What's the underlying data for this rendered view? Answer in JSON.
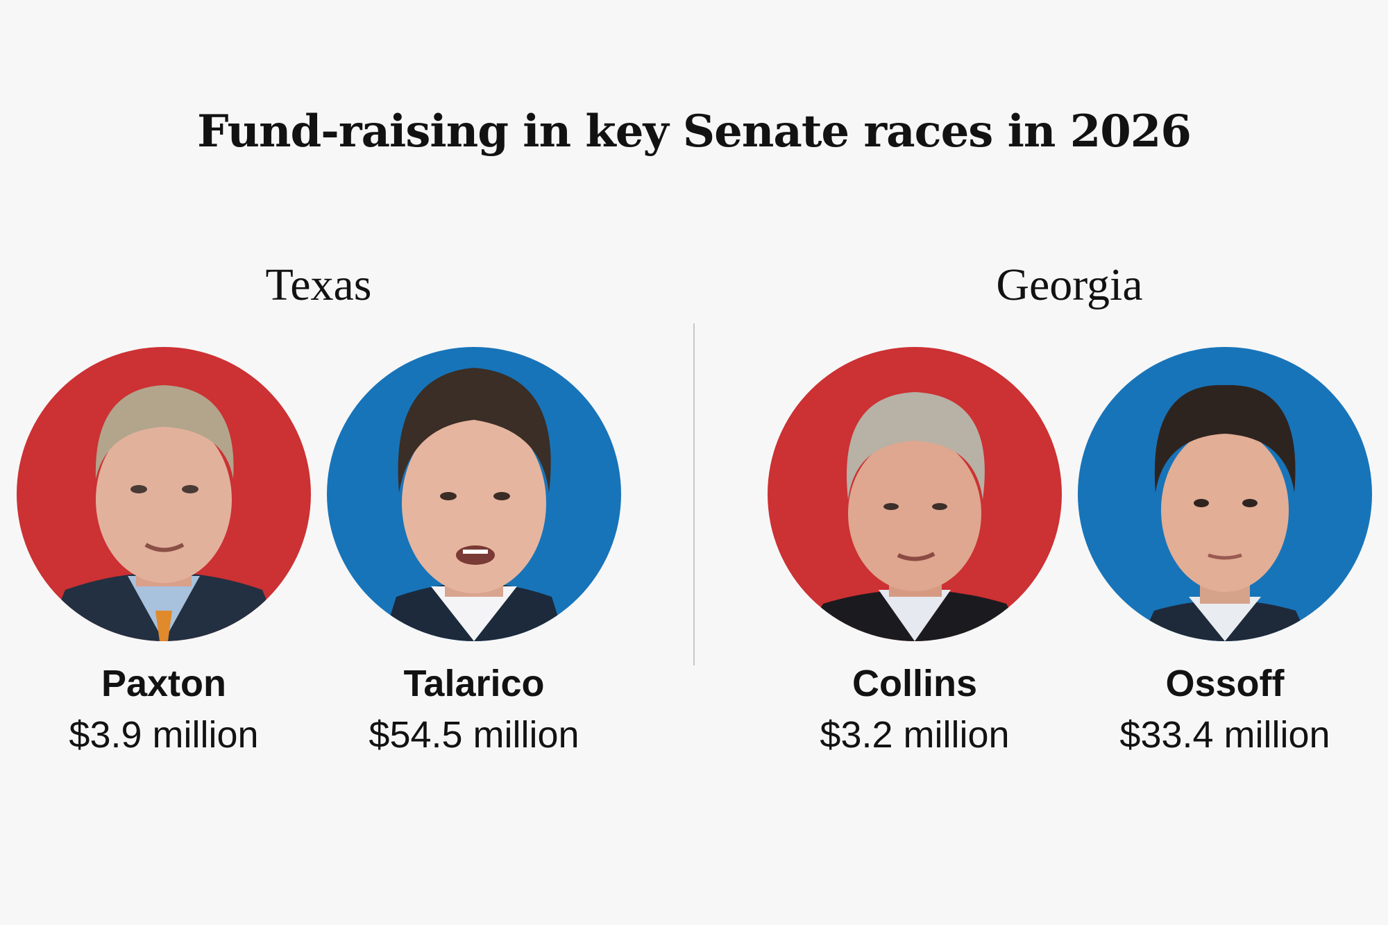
{
  "title": "Fund-raising in key Senate races in 2026",
  "colors": {
    "republican": "#cc3133",
    "democrat": "#1874b9",
    "background": "#f7f7f7"
  },
  "races": [
    {
      "state": "Texas",
      "candidates": [
        {
          "name": "Paxton",
          "amount": "$3.9 million",
          "party_color": "republican"
        },
        {
          "name": "Talarico",
          "amount": "$54.5 million",
          "party_color": "democrat"
        }
      ]
    },
    {
      "state": "Georgia",
      "candidates": [
        {
          "name": "Collins",
          "amount": "$3.2 million",
          "party_color": "republican"
        },
        {
          "name": "Ossoff",
          "amount": "$33.4 million",
          "party_color": "democrat"
        }
      ]
    }
  ]
}
